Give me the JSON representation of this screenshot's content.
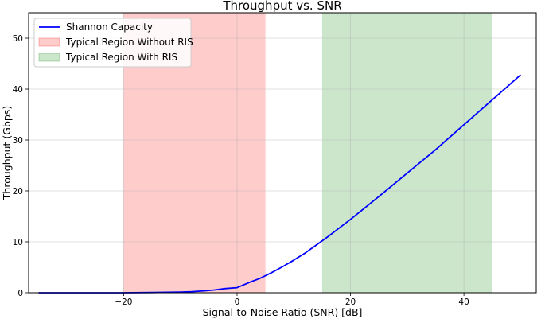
{
  "chart_data": {
    "type": "line",
    "title": "Throughput vs. SNR",
    "xlabel": "Signal-to-Noise Ratio (SNR) [dB]",
    "ylabel": "Throughput (Gbps)",
    "xlim": [
      -36.75,
      52.75
    ],
    "ylim": [
      0,
      55
    ],
    "xticks": [
      -20,
      0,
      20,
      40
    ],
    "yticks": [
      0,
      10,
      20,
      30,
      40,
      50
    ],
    "grid": true,
    "legend_position": "top-left",
    "series": [
      {
        "name": "Shannon Capacity",
        "color": "#0000ff",
        "x": [
          -35,
          -30,
          -25,
          -20,
          -15,
          -10,
          -8,
          -6,
          -4,
          -2,
          0,
          2,
          4,
          6,
          8,
          10,
          12,
          14,
          16,
          18,
          20,
          25,
          30,
          35,
          40,
          45,
          50
        ],
        "y": [
          0.0,
          0.0,
          0.0,
          0.0,
          0.05,
          0.14,
          0.22,
          0.35,
          0.54,
          0.83,
          1.0,
          1.95,
          2.8,
          3.9,
          5.1,
          6.4,
          7.8,
          9.4,
          11.0,
          12.7,
          14.4,
          18.9,
          23.5,
          28.1,
          33.0,
          37.9,
          42.8
        ]
      }
    ],
    "regions": [
      {
        "name": "Typical Region Without RIS",
        "x_start": -20,
        "x_end": 5,
        "color": "#ff0000",
        "opacity": 0.2
      },
      {
        "name": "Typical Region With RIS",
        "x_start": 15,
        "x_end": 45,
        "color": "#008000",
        "opacity": 0.2
      }
    ]
  }
}
